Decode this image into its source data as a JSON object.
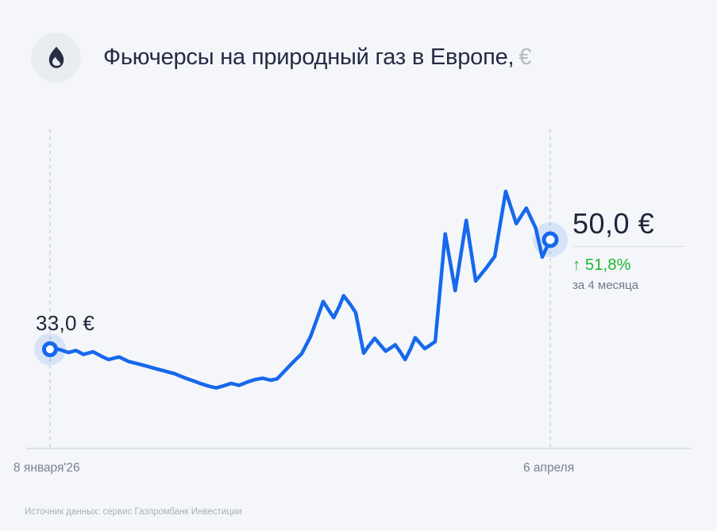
{
  "header": {
    "title": "Фьючерсы на природный газ в Европе,",
    "currency": "€"
  },
  "chart_data": {
    "type": "line",
    "title": "Фьючерсы на природный газ в Европе, €",
    "unit": "€",
    "grid": false,
    "legend": "none",
    "ylim": [
      25,
      60
    ],
    "x_range": {
      "start": "8 января'26",
      "end": "6 апреля",
      "span": "4 месяца"
    },
    "start_point": {
      "label": "33,0 €",
      "value": 33.0,
      "date": "8 января'26"
    },
    "end_point": {
      "label": "50,0 €",
      "value": 50.0,
      "date": "6 апреля"
    },
    "change": {
      "label": "↑ 51,8%",
      "percent": 51.8,
      "direction": "up",
      "period": "за 4 месяца"
    },
    "series": [
      {
        "name": "Фьючерсы на природный газ в Европе, €",
        "points": [
          [
            0.0,
            33.0
          ],
          [
            0.017,
            33.0
          ],
          [
            0.037,
            32.5
          ],
          [
            0.052,
            32.8
          ],
          [
            0.067,
            32.2
          ],
          [
            0.086,
            32.6
          ],
          [
            0.103,
            31.9
          ],
          [
            0.117,
            31.4
          ],
          [
            0.138,
            31.8
          ],
          [
            0.157,
            31.1
          ],
          [
            0.173,
            30.8
          ],
          [
            0.192,
            30.4
          ],
          [
            0.211,
            30.0
          ],
          [
            0.23,
            29.6
          ],
          [
            0.249,
            29.2
          ],
          [
            0.268,
            28.6
          ],
          [
            0.286,
            28.1
          ],
          [
            0.3,
            27.7
          ],
          [
            0.316,
            27.3
          ],
          [
            0.332,
            27.0
          ],
          [
            0.346,
            27.3
          ],
          [
            0.362,
            27.7
          ],
          [
            0.378,
            27.4
          ],
          [
            0.394,
            27.9
          ],
          [
            0.41,
            28.3
          ],
          [
            0.425,
            28.5
          ],
          [
            0.441,
            28.2
          ],
          [
            0.454,
            28.4
          ],
          [
            0.47,
            29.7
          ],
          [
            0.486,
            31.0
          ],
          [
            0.503,
            32.3
          ],
          [
            0.521,
            35.0
          ],
          [
            0.535,
            38.0
          ],
          [
            0.546,
            40.4
          ],
          [
            0.557,
            39.1
          ],
          [
            0.567,
            37.9
          ],
          [
            0.578,
            39.6
          ],
          [
            0.587,
            41.3
          ],
          [
            0.6,
            40.0
          ],
          [
            0.611,
            38.7
          ],
          [
            0.627,
            32.4
          ],
          [
            0.638,
            33.6
          ],
          [
            0.649,
            34.7
          ],
          [
            0.66,
            33.7
          ],
          [
            0.671,
            32.7
          ],
          [
            0.681,
            33.2
          ],
          [
            0.69,
            33.7
          ],
          [
            0.7,
            32.6
          ],
          [
            0.71,
            31.4
          ],
          [
            0.721,
            33.1
          ],
          [
            0.73,
            34.8
          ],
          [
            0.74,
            33.9
          ],
          [
            0.749,
            33.1
          ],
          [
            0.759,
            33.6
          ],
          [
            0.77,
            34.2
          ],
          [
            0.79,
            50.9
          ],
          [
            0.81,
            42.1
          ],
          [
            0.832,
            53.0
          ],
          [
            0.851,
            43.6
          ],
          [
            0.871,
            45.5
          ],
          [
            0.889,
            47.4
          ],
          [
            0.911,
            57.5
          ],
          [
            0.932,
            52.5
          ],
          [
            0.952,
            54.9
          ],
          [
            0.971,
            51.8
          ],
          [
            0.984,
            47.3
          ],
          [
            1.0,
            50.0
          ]
        ]
      }
    ]
  },
  "footer": {
    "source": "Источник данных: сервис Газпромбанк Инвестиции"
  },
  "colors": {
    "background": "#f4f6f9",
    "line": "#1668ec",
    "marker_halo": "rgba(22,104,236,0.13)",
    "marker_fill": "#ffffff",
    "positive": "#1db534",
    "title": "#232b45",
    "currency_muted": "#b4bac3",
    "axis_text": "#78828f",
    "dashed_guide": "#c0c7d0",
    "axis_line": "#d3d8de",
    "icon": "#252d43"
  }
}
